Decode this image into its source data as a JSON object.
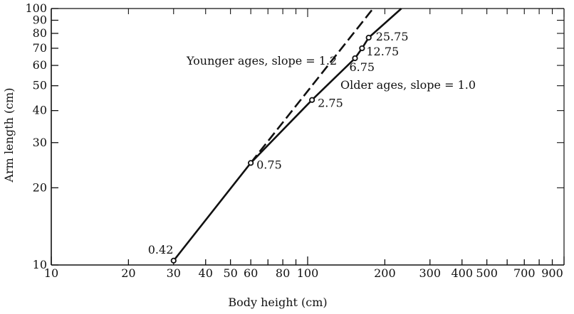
{
  "chart_data": {
    "type": "line",
    "title": "",
    "xlabel": "Body height (cm)",
    "ylabel": "Arm length (cm)",
    "xscale": "log",
    "yscale": "log",
    "xlim": [
      10,
      1000
    ],
    "ylim": [
      10,
      100
    ],
    "grid": false,
    "x_tick_labels": [
      10,
      20,
      30,
      40,
      50,
      60,
      80,
      100,
      200,
      300,
      400,
      500,
      700,
      900
    ],
    "y_tick_labels": [
      10,
      20,
      30,
      40,
      50,
      60,
      70,
      80,
      90,
      100
    ],
    "points": [
      {
        "label": "0.42",
        "x": 30,
        "y": 10.4
      },
      {
        "label": "0.75",
        "x": 60,
        "y": 25
      },
      {
        "label": "2.75",
        "x": 104,
        "y": 44
      },
      {
        "label": "6.75",
        "x": 153,
        "y": 64
      },
      {
        "label": "12.75",
        "x": 163,
        "y": 70
      },
      {
        "label": "25.75",
        "x": 173,
        "y": 77
      }
    ],
    "series": [
      {
        "style": "solid",
        "x": [
          30,
          60,
          104,
          153,
          163,
          173,
          232
        ],
        "y": [
          10.4,
          25,
          44,
          64,
          70,
          77,
          100
        ]
      },
      {
        "style": "dashed",
        "x": [
          60,
          180
        ],
        "y": [
          25,
          100
        ]
      }
    ],
    "annotations": [
      {
        "text": "Younger ages, slope = 1.2"
      },
      {
        "text": "Older ages, slope = 1.0"
      }
    ]
  }
}
